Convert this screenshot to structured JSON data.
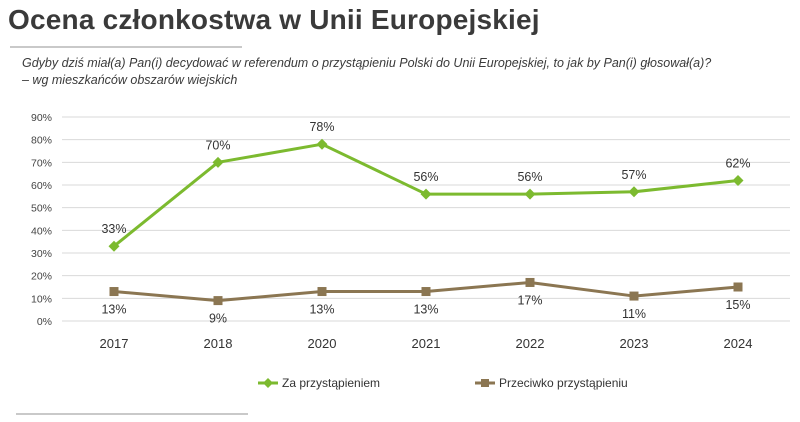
{
  "header": {
    "title": "Ocena członkostwa w Unii Europejskiej",
    "subtitle_line1": "Gdyby dziś miał(a) Pan(i) decydować w referendum o przystąpieniu Polski do Unii Europejskiej, to jak by Pan(i) głosował(a)?",
    "subtitle_line2": "– wg mieszkańców obszarów wiejskich"
  },
  "chart_data": {
    "type": "line",
    "categories": [
      "2017",
      "2018",
      "2020",
      "2021",
      "2022",
      "2023",
      "2024"
    ],
    "ylim": [
      0,
      90
    ],
    "yticks": [
      0,
      10,
      20,
      30,
      40,
      50,
      60,
      70,
      80,
      90
    ],
    "ytick_labels": [
      "0%",
      "10%",
      "20%",
      "30%",
      "40%",
      "50%",
      "60%",
      "70%",
      "80%",
      "90%"
    ],
    "grid": true,
    "legend_position": "bottom",
    "series": [
      {
        "name": "Za przystąpieniem",
        "values": [
          33,
          70,
          78,
          56,
          56,
          57,
          62
        ],
        "labels": [
          "33%",
          "70%",
          "78%",
          "56%",
          "56%",
          "57%",
          "62%"
        ],
        "color": "#7cba2f",
        "marker": "diamond"
      },
      {
        "name": "Przeciwko przystąpieniu",
        "values": [
          13,
          9,
          13,
          13,
          17,
          11,
          15
        ],
        "labels": [
          "13%",
          "9%",
          "13%",
          "13%",
          "17%",
          "11%",
          "15%"
        ],
        "color": "#8b7652",
        "marker": "square"
      }
    ]
  }
}
